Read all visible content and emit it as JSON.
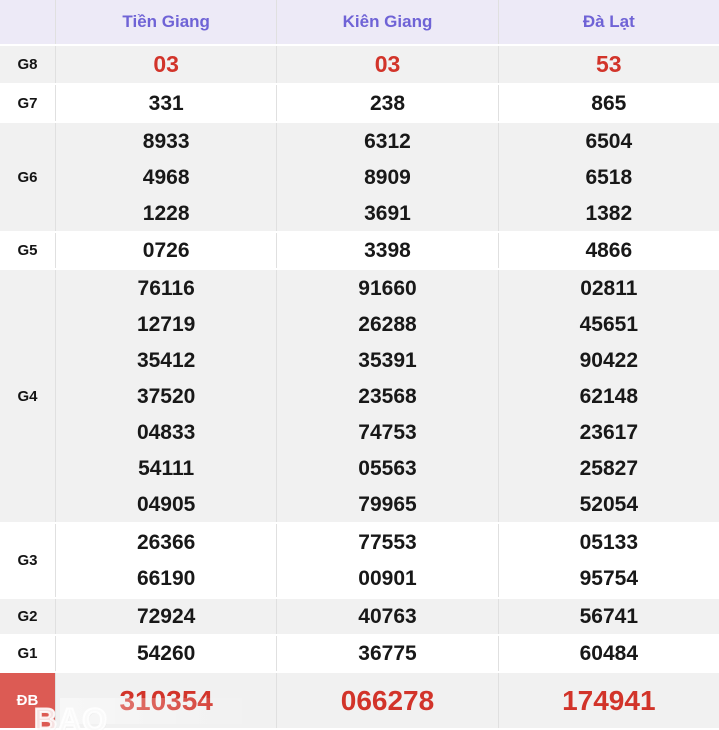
{
  "table": {
    "columns": [
      "Tiền Giang",
      "Kiên Giang",
      "Đà Lạt"
    ],
    "rows": [
      {
        "label": "G8",
        "emphasis": "red",
        "label_bg": "",
        "cells": [
          [
            "03"
          ],
          [
            "03"
          ],
          [
            "53"
          ]
        ]
      },
      {
        "label": "G7",
        "emphasis": "",
        "label_bg": "",
        "cells": [
          [
            "331"
          ],
          [
            "238"
          ],
          [
            "865"
          ]
        ]
      },
      {
        "label": "G6",
        "emphasis": "",
        "label_bg": "",
        "cells": [
          [
            "8933",
            "4968",
            "1228"
          ],
          [
            "6312",
            "8909",
            "3691"
          ],
          [
            "6504",
            "6518",
            "1382"
          ]
        ]
      },
      {
        "label": "G5",
        "emphasis": "",
        "label_bg": "",
        "cells": [
          [
            "0726"
          ],
          [
            "3398"
          ],
          [
            "4866"
          ]
        ]
      },
      {
        "label": "G4",
        "emphasis": "",
        "label_bg": "",
        "cells": [
          [
            "76116",
            "12719",
            "35412",
            "37520",
            "04833",
            "54111",
            "04905"
          ],
          [
            "91660",
            "26288",
            "35391",
            "23568",
            "74753",
            "05563",
            "79965"
          ],
          [
            "02811",
            "45651",
            "90422",
            "62148",
            "23617",
            "25827",
            "52054"
          ]
        ]
      },
      {
        "label": "G3",
        "emphasis": "",
        "label_bg": "",
        "cells": [
          [
            "26366",
            "66190"
          ],
          [
            "77553",
            "00901"
          ],
          [
            "05133",
            "95754"
          ]
        ]
      },
      {
        "label": "G2",
        "emphasis": "",
        "label_bg": "",
        "cells": [
          [
            "72924"
          ],
          [
            "40763"
          ],
          [
            "56741"
          ]
        ]
      },
      {
        "label": "G1",
        "emphasis": "",
        "label_bg": "",
        "cells": [
          [
            "54260"
          ],
          [
            "36775"
          ],
          [
            "60484"
          ]
        ]
      },
      {
        "label": "ĐB",
        "emphasis": "red-large",
        "label_bg": "red",
        "cells": [
          [
            "310354"
          ],
          [
            "066278"
          ],
          [
            "174941"
          ]
        ]
      }
    ]
  },
  "watermark": {
    "text": "BAO"
  },
  "colors": {
    "header_bg": "#edeaf7",
    "header_text": "#6f63d6",
    "zebra_gray": "#f1f1f1",
    "red_value": "#d2342a",
    "special_label_bg": "#dc5b54",
    "divider": "#e0e0e0"
  }
}
